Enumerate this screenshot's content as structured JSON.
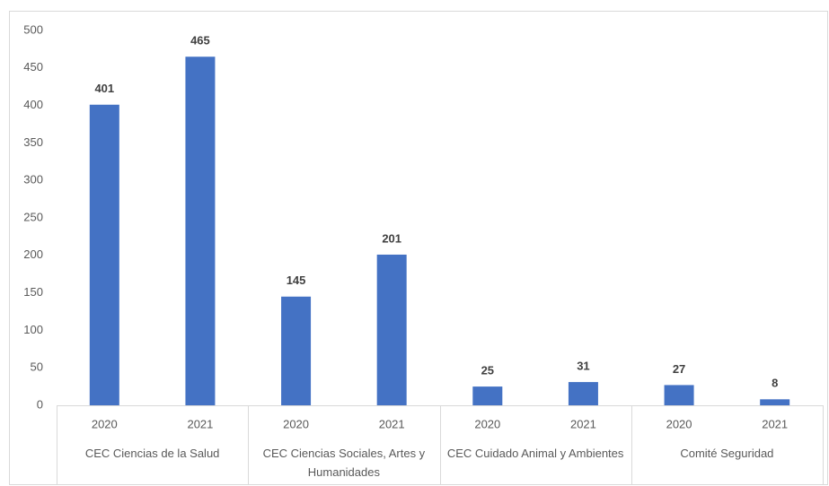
{
  "chart_data": {
    "type": "bar",
    "groups": [
      {
        "label": "CEC Ciencias de la Salud",
        "categories": [
          "2020",
          "2021"
        ],
        "values": [
          401,
          465
        ]
      },
      {
        "label": "CEC Ciencias Sociales, Artes y Humanidades",
        "categories": [
          "2020",
          "2021"
        ],
        "values": [
          145,
          201
        ]
      },
      {
        "label": "CEC Cuidado Animal y Ambientes",
        "categories": [
          "2020",
          "2021"
        ],
        "values": [
          25,
          31
        ]
      },
      {
        "label": "Comité Seguridad",
        "categories": [
          "2020",
          "2021"
        ],
        "values": [
          27,
          8
        ]
      }
    ],
    "color": "#4472c4",
    "ylim": [
      0,
      500
    ],
    "yticks": [
      0,
      50,
      100,
      150,
      200,
      250,
      300,
      350,
      400,
      450,
      500
    ],
    "grid": false
  }
}
